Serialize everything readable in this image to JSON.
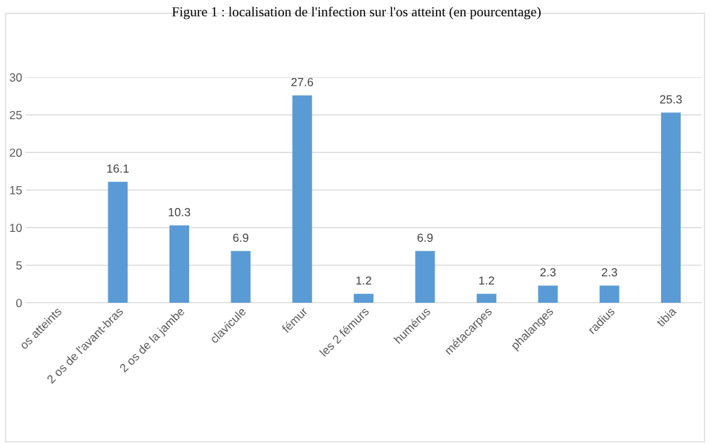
{
  "chart_data": {
    "type": "bar",
    "title": "Figure 1 : localisation de l'infection sur l'os atteint (en pourcentage)",
    "categories": [
      "os atteints",
      "2 os de l'avant-bras",
      "2 os de la jambe",
      "clavicule",
      "fémur",
      "les 2 fémurs",
      "humérus",
      "métacarpes",
      "phalanges",
      "radius",
      "tibia"
    ],
    "values": [
      null,
      16.1,
      10.3,
      6.9,
      27.6,
      1.2,
      6.9,
      1.2,
      2.3,
      2.3,
      25.3
    ],
    "color": "#5b9bd5",
    "ylim": [
      0,
      30
    ],
    "yticks": [
      0,
      5,
      10,
      15,
      20,
      25,
      30
    ],
    "grid": "y",
    "data_labels": true
  }
}
